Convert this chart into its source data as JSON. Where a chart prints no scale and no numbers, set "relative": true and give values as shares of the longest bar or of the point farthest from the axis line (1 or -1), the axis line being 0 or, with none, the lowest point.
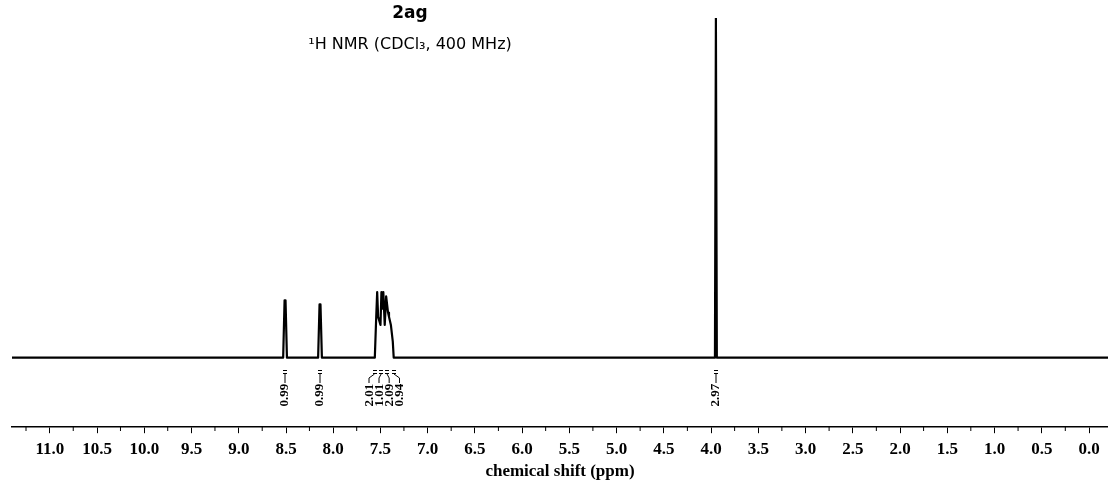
{
  "chart_data": {
    "type": "line",
    "title": "2ag",
    "subtitle": "¹H NMR (CDCl₃, 400 MHz)",
    "xlabel": "chemical shift (ppm)",
    "relative": true,
    "xlim": [
      11.4,
      -0.2
    ],
    "xticks": [
      {
        "value": 11,
        "label": "11.0"
      },
      {
        "value": 10.5,
        "label": "10.5"
      },
      {
        "value": 10,
        "label": "10.0"
      },
      {
        "value": 9.5,
        "label": "9.5"
      },
      {
        "value": 9,
        "label": "9.0"
      },
      {
        "value": 8.5,
        "label": "8.5"
      },
      {
        "value": 8,
        "label": "8.0"
      },
      {
        "value": 7.5,
        "label": "7.5"
      },
      {
        "value": 7,
        "label": "7.0"
      },
      {
        "value": 6.5,
        "label": "6.5"
      },
      {
        "value": 6,
        "label": "6.0"
      },
      {
        "value": 5.5,
        "label": "5.5"
      },
      {
        "value": 5,
        "label": "5.0"
      },
      {
        "value": 4.5,
        "label": "4.5"
      },
      {
        "value": 4,
        "label": "4.0"
      },
      {
        "value": 3.5,
        "label": "3.5"
      },
      {
        "value": 3,
        "label": "3.0"
      },
      {
        "value": 2.5,
        "label": "2.5"
      },
      {
        "value": 2,
        "label": "2.0"
      },
      {
        "value": 1.5,
        "label": "1.5"
      },
      {
        "value": 1,
        "label": "1.0"
      },
      {
        "value": 0.5,
        "label": "0.5"
      },
      {
        "value": 0,
        "label": "0.0"
      }
    ],
    "series": [
      {
        "color": "#000000",
        "x": [
          11.4,
          8.53,
          8.515,
          8.51,
          8.505,
          8.49,
          8.16,
          8.145,
          8.14,
          8.135,
          8.12,
          7.56,
          7.545,
          7.535,
          7.525,
          7.5,
          7.49,
          7.48,
          7.47,
          7.455,
          7.44,
          7.42,
          7.41,
          7.39,
          7.37,
          7.36,
          3.96,
          3.95,
          3.94,
          -0.2
        ],
        "values": [
          0.17,
          0.17,
          0.31,
          0.25,
          0.31,
          0.17,
          0.17,
          0.3,
          0.25,
          0.3,
          0.17,
          0.17,
          0.27,
          0.33,
          0.27,
          0.25,
          0.33,
          0.29,
          0.33,
          0.25,
          0.32,
          0.28,
          0.27,
          0.25,
          0.21,
          0.17,
          0.17,
          1,
          0.17,
          0.17
        ]
      }
    ],
    "marker": "none",
    "grid": false,
    "legend": false,
    "annotations": [
      {
        "text": "0.99",
        "x": 8.51
      },
      {
        "text": "0.99",
        "x": 8.14
      },
      {
        "text": "2.01",
        "x": 7.56
      },
      {
        "text": "1.01",
        "x": 7.49
      },
      {
        "text": "2.09",
        "x": 7.43
      },
      {
        "text": "0.94",
        "x": 7.36
      },
      {
        "text": "2.97",
        "x": 3.95
      }
    ]
  }
}
